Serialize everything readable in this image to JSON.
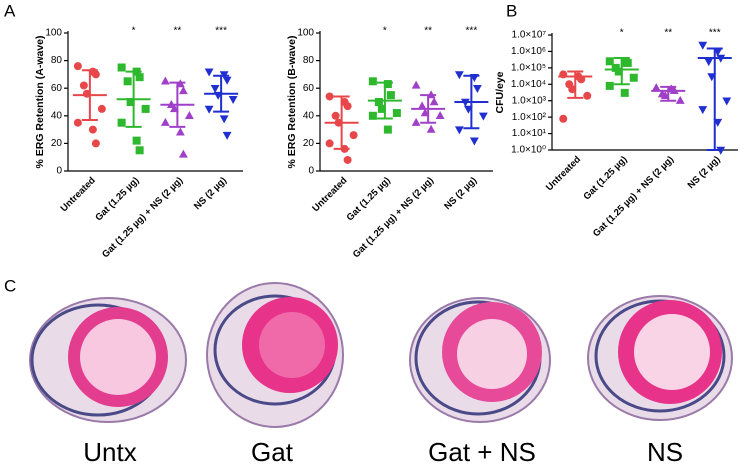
{
  "panels": [
    "A",
    "B",
    "C"
  ],
  "images": [
    {
      "label": "Untx"
    },
    {
      "label": "Gat"
    },
    {
      "label": "Gat + NS"
    },
    {
      "label": "NS"
    }
  ],
  "chart_data": [
    {
      "type": "dotplot",
      "ylabel": "% ERG Retention (A-wave)",
      "categories": [
        "Untreated",
        "Gat (1.25 µg)",
        "Gat (1.25 µg) + NS (2 µg)",
        "NS (2 µg)"
      ],
      "colors": [
        "#e8474a",
        "#2db82d",
        "#a040c8",
        "#1f2fd0"
      ],
      "markers": [
        "circle",
        "square",
        "triangle-up",
        "triangle-down"
      ],
      "points": [
        [
          76,
          72,
          70,
          62,
          56,
          45,
          35,
          30,
          20
        ],
        [
          75,
          72,
          68,
          65,
          50,
          45,
          35,
          22,
          15
        ],
        [
          65,
          63,
          58,
          48,
          45,
          40,
          35,
          28,
          12
        ],
        [
          72,
          70,
          66,
          60,
          55,
          52,
          45,
          38,
          26
        ]
      ],
      "mean": [
        55,
        52,
        48,
        56
      ],
      "lower": [
        37,
        32,
        32,
        43
      ],
      "upper": [
        73,
        72,
        64,
        69
      ],
      "annotations": [
        null,
        "*",
        "**",
        "***"
      ],
      "ylim": [
        0,
        100
      ],
      "yticks": [
        0,
        20,
        40,
        60,
        80,
        100
      ],
      "log": false
    },
    {
      "type": "dotplot",
      "ylabel": "% ERG Retention (B-wave)",
      "categories": [
        "Untreated",
        "Gat (1.25 µg)",
        "Gat (1.25 µg) + NS (2 µg)",
        "NS (2 µg)"
      ],
      "colors": [
        "#e8474a",
        "#2db82d",
        "#a040c8",
        "#1f2fd0"
      ],
      "markers": [
        "circle",
        "square",
        "triangle-up",
        "triangle-down"
      ],
      "points": [
        [
          54,
          50,
          47,
          40,
          35,
          26,
          20,
          16,
          8
        ],
        [
          65,
          63,
          55,
          50,
          45,
          42,
          40,
          30
        ],
        [
          62,
          55,
          50,
          47,
          42,
          40,
          35,
          30
        ],
        [
          70,
          68,
          60,
          50,
          45,
          40,
          30,
          22
        ]
      ],
      "mean": [
        35,
        51,
        45,
        50
      ],
      "lower": [
        16,
        38,
        35,
        31
      ],
      "upper": [
        54,
        64,
        55,
        69
      ],
      "annotations": [
        null,
        "*",
        "**",
        "***"
      ],
      "ylim": [
        0,
        100
      ],
      "yticks": [
        0,
        20,
        40,
        60,
        80,
        100
      ],
      "log": false
    },
    {
      "type": "dotplot",
      "ylabel": "CFU/eye",
      "categories": [
        "Untreated",
        "Gat (1.25 µg)",
        "Gat (1.25 µg) + NS (2 µg)",
        "NS (2 µg)"
      ],
      "colors": [
        "#e8474a",
        "#2db82d",
        "#a040c8",
        "#1f2fd0"
      ],
      "markers": [
        "circle",
        "square",
        "triangle-up",
        "triangle-down"
      ],
      "points": [
        [
          40000,
          30000,
          20000,
          10000,
          5000,
          2000,
          80
        ],
        [
          250000,
          200000,
          200000,
          100000,
          60000,
          25000,
          8000,
          3000
        ],
        [
          6000,
          5000,
          4000,
          2500,
          2000,
          1000
        ],
        [
          2500000,
          1000000,
          400000,
          250000,
          30000,
          1000,
          300,
          50,
          1
        ]
      ],
      "mean": [
        30000,
        80000,
        4000,
        400000
      ],
      "lower": [
        1500,
        10000,
        1000,
        1
      ],
      "upper": [
        60000,
        400000,
        7000,
        1500000
      ],
      "annotations": [
        null,
        "*",
        "**",
        "***"
      ],
      "ylim": [
        1,
        10000000
      ],
      "log": true,
      "yticks": [
        {
          "value": 1,
          "label": "1.0×10⁰"
        },
        {
          "value": 10,
          "label": "1.0×10¹"
        },
        {
          "value": 100,
          "label": "1.0×10²"
        },
        {
          "value": 1000,
          "label": "1.0×10³"
        },
        {
          "value": 10000,
          "label": "1.0×10⁴"
        },
        {
          "value": 100000,
          "label": "1.0×10⁵"
        },
        {
          "value": 1000000,
          "label": "1.0×10⁶"
        },
        {
          "value": 10000000,
          "label": "1.0×10⁷"
        }
      ]
    }
  ]
}
